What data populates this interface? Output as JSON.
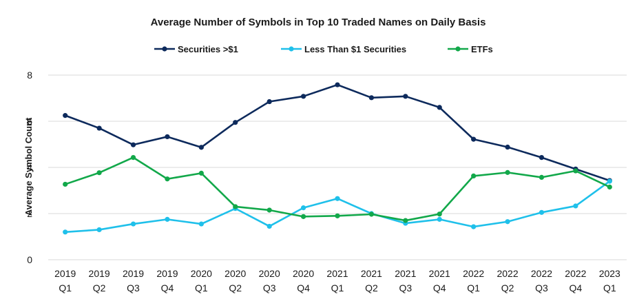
{
  "chart_data": {
    "type": "line",
    "title": "Average Number of Symbols in Top 10 Traded Names on Daily Basis",
    "ylabel": "Average Symbol Count",
    "xlabel": "",
    "ylim": [
      0,
      8
    ],
    "yticks": [
      0,
      2,
      4,
      6,
      8
    ],
    "grid": true,
    "legend_position": "top",
    "categories": [
      [
        "2019",
        "Q1"
      ],
      [
        "2019",
        "Q2"
      ],
      [
        "2019",
        "Q3"
      ],
      [
        "2019",
        "Q4"
      ],
      [
        "2020",
        "Q1"
      ],
      [
        "2020",
        "Q2"
      ],
      [
        "2020",
        "Q3"
      ],
      [
        "2020",
        "Q4"
      ],
      [
        "2021",
        "Q1"
      ],
      [
        "2021",
        "Q2"
      ],
      [
        "2021",
        "Q3"
      ],
      [
        "2021",
        "Q4"
      ],
      [
        "2022",
        "Q1"
      ],
      [
        "2022",
        "Q2"
      ],
      [
        "2022",
        "Q3"
      ],
      [
        "2022",
        "Q4"
      ],
      [
        "2023",
        "Q1"
      ]
    ],
    "series": [
      {
        "name": "Securities >$1",
        "color": "#0d2a5c",
        "values": [
          6.25,
          5.7,
          4.98,
          5.33,
          4.87,
          5.95,
          6.85,
          7.08,
          7.58,
          7.02,
          7.08,
          6.6,
          5.22,
          4.88,
          4.43,
          3.93,
          3.43
        ]
      },
      {
        "name": "Less Than $1 Securities",
        "color": "#1fc0ea",
        "values": [
          1.2,
          1.3,
          1.55,
          1.75,
          1.55,
          2.22,
          1.45,
          2.25,
          2.65,
          2.0,
          1.58,
          1.75,
          1.43,
          1.65,
          2.05,
          2.33,
          3.4
        ]
      },
      {
        "name": "ETFs",
        "color": "#12a84a",
        "values": [
          3.27,
          3.77,
          4.43,
          3.5,
          3.75,
          2.3,
          2.15,
          1.87,
          1.9,
          1.97,
          1.7,
          1.98,
          3.63,
          3.78,
          3.57,
          3.85,
          3.15
        ]
      }
    ]
  }
}
